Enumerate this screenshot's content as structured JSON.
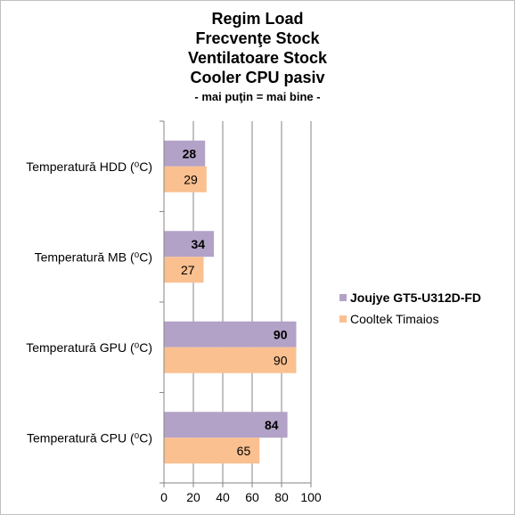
{
  "chart_data": {
    "type": "bar",
    "orientation": "horizontal",
    "title_lines": [
      "Regim Load",
      "Frecvenţe Stock",
      "Ventilatoare Stock",
      "Cooler CPU pasiv"
    ],
    "subtitle": "- mai puţin = mai bine -",
    "categories": [
      "Temperatură HDD (⁰C)",
      "Temperatură MB (⁰C)",
      "Temperatură GPU (⁰C)",
      "Temperatură CPU (⁰C)"
    ],
    "series": [
      {
        "name": "Joujye GT5-U312D-FD",
        "values": [
          28,
          34,
          90,
          84
        ],
        "color": "#b3a2c7",
        "label_bold": true
      },
      {
        "name": "Cooltek Timaios",
        "values": [
          29,
          27,
          90,
          65
        ],
        "color": "#fac090",
        "label_bold": false
      }
    ],
    "xlim": [
      0,
      100
    ],
    "xticks": [
      0,
      20,
      40,
      60,
      80,
      100
    ],
    "grid": true,
    "legend_position": "right",
    "colors": {
      "axis": "#868686",
      "grid": "#868686"
    }
  }
}
